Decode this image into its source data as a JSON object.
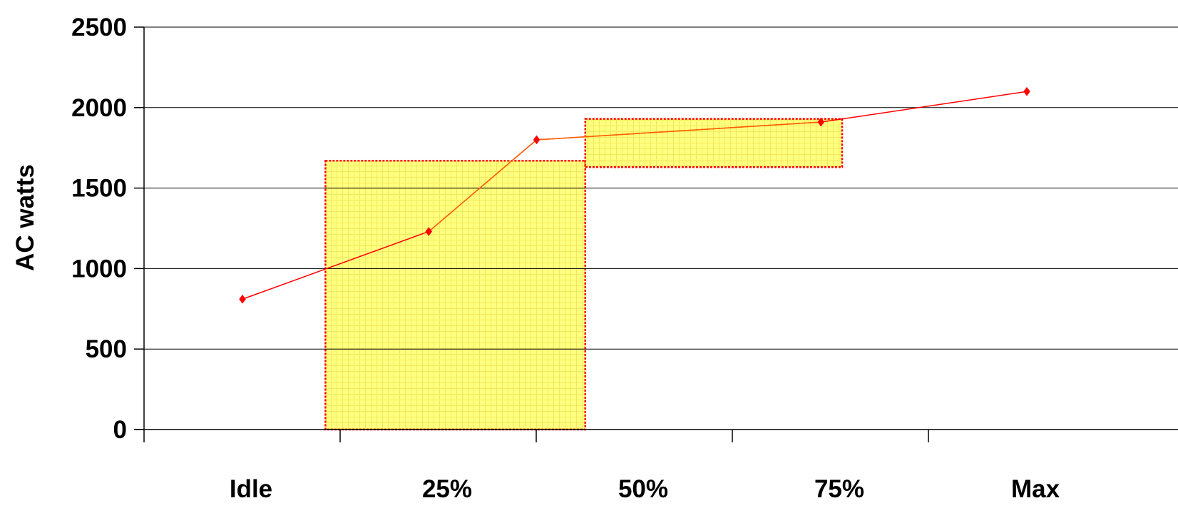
{
  "chart_data": {
    "type": "line",
    "title": "",
    "xlabel": "",
    "ylabel": "AC watts",
    "categories": [
      "Idle",
      "25%",
      "50%",
      "75%",
      "Max"
    ],
    "series": [
      {
        "x": [
          0.0,
          0.95,
          1.5,
          2.95,
          4.0
        ],
        "values": [
          810,
          1230,
          1800,
          1910,
          2100
        ],
        "color": "#ff0000",
        "marker": "diamond"
      }
    ],
    "ylim": [
      0,
      2500
    ],
    "yticks": [
      0,
      500,
      1000,
      1500,
      2000,
      2500
    ],
    "grid": "horizontal",
    "highlight_regions": [
      {
        "x_range": [
          0.425,
          1.75
        ],
        "y_range": [
          0,
          1670
        ],
        "fill": "#ffff80",
        "border": "#ff0000",
        "border_style": "dotted"
      },
      {
        "x_range": [
          1.75,
          3.06
        ],
        "y_range": [
          1630,
          1930
        ],
        "fill": "#ffff80",
        "border": "#ff0000",
        "border_style": "dotted"
      }
    ],
    "colors": {
      "axis": "#000000",
      "grid": "#000000",
      "region_line": "#ff8000"
    }
  }
}
